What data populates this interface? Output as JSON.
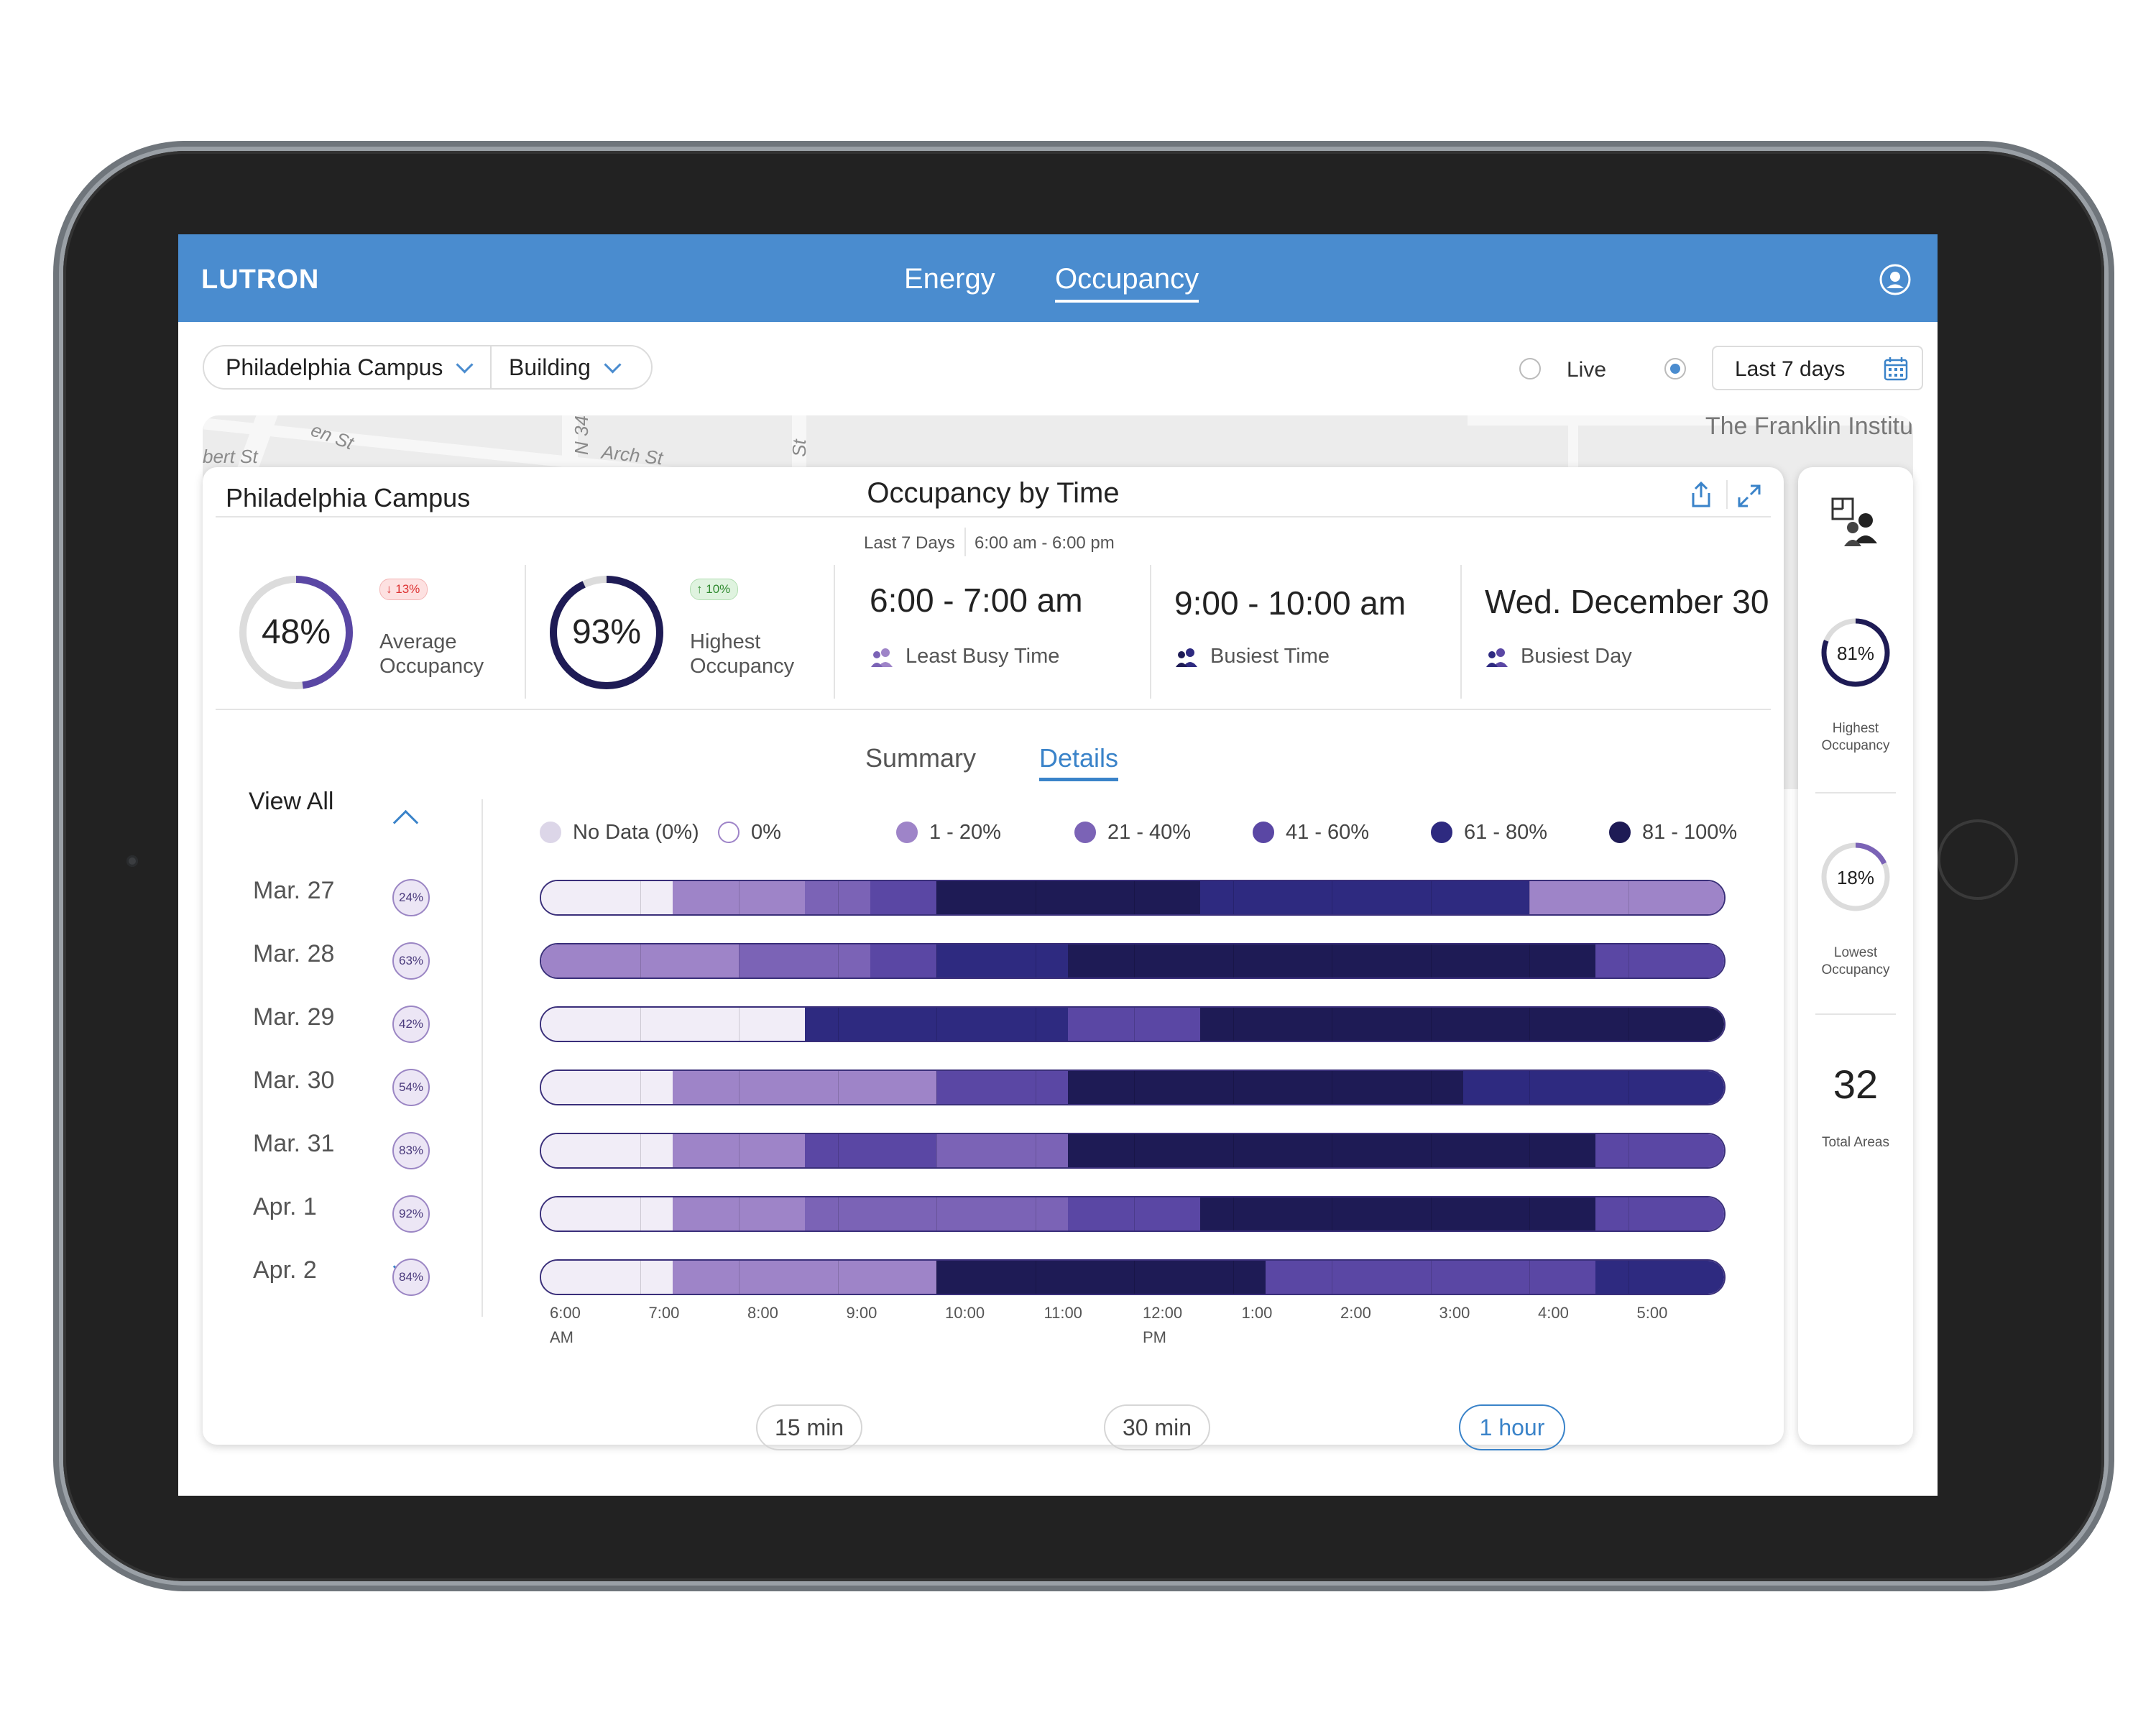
{
  "app": {
    "logo": "LUTRON",
    "nav": [
      {
        "label": "Energy"
      },
      {
        "label": "Occupancy",
        "active": true
      }
    ]
  },
  "filters": {
    "campus": "Philadelphia Campus",
    "building": "Building",
    "live_label": "Live",
    "range_label": "Last 7 days"
  },
  "map": {
    "streets": [
      "en St",
      "bert St",
      "N 34",
      "Arch St",
      "St"
    ],
    "place": "The Franklin Institu"
  },
  "card": {
    "location": "Philadelphia Campus",
    "heading": "Occupancy by Time",
    "range": "Last 7 Days",
    "hours": "6:00 am - 6:00 pm",
    "stats": [
      {
        "value": "48%",
        "fraction": 0.48,
        "delta": "13%",
        "direction": "down",
        "caption_1": "Average",
        "caption_2": "Occupancy"
      },
      {
        "value": "93%",
        "fraction": 0.93,
        "delta": "10%",
        "direction": "up",
        "caption_1": "Highest",
        "caption_2": "Occupancy"
      }
    ],
    "highlights": [
      {
        "value": "6:00 - 7:00 am",
        "caption": "Least Busy Time"
      },
      {
        "value": "9:00 - 10:00 am",
        "caption": "Busiest Time"
      },
      {
        "value": "Wed. December 30",
        "caption": "Busiest Day"
      }
    ],
    "tabs": [
      {
        "label": "Summary"
      },
      {
        "label": "Details",
        "active": true
      }
    ]
  },
  "details": {
    "view_all": "View All",
    "legend": [
      {
        "label": "No Data (0%)",
        "color": "#dcd6e8"
      },
      {
        "label": "0%",
        "color": "#ffffff"
      },
      {
        "label": "1 - 20%",
        "color": "#9e84c8"
      },
      {
        "label": "21 - 40%",
        "color": "#7b63b6"
      },
      {
        "label": "41 - 60%",
        "color": "#5a47a4"
      },
      {
        "label": "61 - 80%",
        "color": "#2e2a80"
      },
      {
        "label": "81 - 100%",
        "color": "#1e1b55"
      }
    ],
    "days": [
      {
        "label": "Mar. 27",
        "pct": "24%",
        "levels": [
          "0%",
          "0%",
          "1 - 20%",
          "1 - 20%",
          "21 - 40%",
          "41 - 60%",
          "81 - 100%",
          "81 - 100%",
          "81 - 100%",
          "81 - 100%",
          "61 - 80%",
          "61 - 80%",
          "61 - 80%",
          "61 - 80%",
          "61 - 80%",
          "1 - 20%",
          "1 - 20%",
          "1 - 20%"
        ]
      },
      {
        "label": "Mar. 28",
        "pct": "63%",
        "levels": [
          "1 - 20%",
          "1 - 20%",
          "1 - 20%",
          "21 - 40%",
          "21 - 40%",
          "41 - 60%",
          "61 - 80%",
          "61 - 80%",
          "81 - 100%",
          "81 - 100%",
          "81 - 100%",
          "81 - 100%",
          "81 - 100%",
          "81 - 100%",
          "81 - 100%",
          "81 - 100%",
          "41 - 60%",
          "41 - 60%"
        ]
      },
      {
        "label": "Mar. 29",
        "pct": "42%",
        "levels": [
          "0%",
          "0%",
          "0%",
          "0%",
          "61 - 80%",
          "61 - 80%",
          "61 - 80%",
          "61 - 80%",
          "41 - 60%",
          "41 - 60%",
          "81 - 100%",
          "81 - 100%",
          "81 - 100%",
          "81 - 100%",
          "81 - 100%",
          "81 - 100%",
          "81 - 100%",
          "81 - 100%"
        ]
      },
      {
        "label": "Mar. 30",
        "pct": "54%",
        "levels": [
          "0%",
          "0%",
          "1 - 20%",
          "1 - 20%",
          "1 - 20%",
          "1 - 20%",
          "41 - 60%",
          "41 - 60%",
          "81 - 100%",
          "81 - 100%",
          "81 - 100%",
          "81 - 100%",
          "81 - 100%",
          "81 - 100%",
          "61 - 80%",
          "61 - 80%",
          "61 - 80%",
          "61 - 80%"
        ]
      },
      {
        "label": "Mar. 31",
        "pct": "83%",
        "levels": [
          "0%",
          "0%",
          "1 - 20%",
          "1 - 20%",
          "41 - 60%",
          "41 - 60%",
          "21 - 40%",
          "21 - 40%",
          "81 - 100%",
          "81 - 100%",
          "81 - 100%",
          "81 - 100%",
          "81 - 100%",
          "81 - 100%",
          "81 - 100%",
          "81 - 100%",
          "41 - 60%",
          "41 - 60%"
        ]
      },
      {
        "label": "Apr. 1",
        "pct": "92%",
        "levels": [
          "0%",
          "0%",
          "1 - 20%",
          "1 - 20%",
          "21 - 40%",
          "21 - 40%",
          "21 - 40%",
          "21 - 40%",
          "41 - 60%",
          "41 - 60%",
          "81 - 100%",
          "81 - 100%",
          "81 - 100%",
          "81 - 100%",
          "81 - 100%",
          "81 - 100%",
          "41 - 60%",
          "41 - 60%"
        ]
      },
      {
        "label": "Apr. 2",
        "pct": "84%",
        "levels": [
          "0%",
          "0%",
          "1 - 20%",
          "1 - 20%",
          "1 - 20%",
          "1 - 20%",
          "81 - 100%",
          "81 - 100%",
          "81 - 100%",
          "81 - 100%",
          "81 - 100%",
          "41 - 60%",
          "41 - 60%",
          "41 - 60%",
          "41 - 60%",
          "41 - 60%",
          "61 - 80%",
          "61 - 80%"
        ]
      }
    ],
    "axis": [
      {
        "t": "6:00",
        "sub": "AM"
      },
      {
        "t": "7:00"
      },
      {
        "t": "8:00"
      },
      {
        "t": "9:00"
      },
      {
        "t": "10:00"
      },
      {
        "t": "11:00"
      },
      {
        "t": "12:00",
        "sub": "PM"
      },
      {
        "t": "1:00"
      },
      {
        "t": "2:00"
      },
      {
        "t": "3:00"
      },
      {
        "t": "4:00"
      },
      {
        "t": "5:00"
      }
    ],
    "intervals": [
      {
        "label": "15 min"
      },
      {
        "label": "30 min"
      },
      {
        "label": "1 hour",
        "active": true
      }
    ]
  },
  "side": {
    "highest": {
      "value": "81%",
      "fraction": 0.81,
      "caption_1": "Highest",
      "caption_2": "Occupancy"
    },
    "lowest": {
      "value": "18%",
      "fraction": 0.18,
      "caption_1": "Lowest",
      "caption_2": "Occupancy"
    },
    "areas": {
      "value": "32",
      "caption": "Total Areas"
    }
  }
}
